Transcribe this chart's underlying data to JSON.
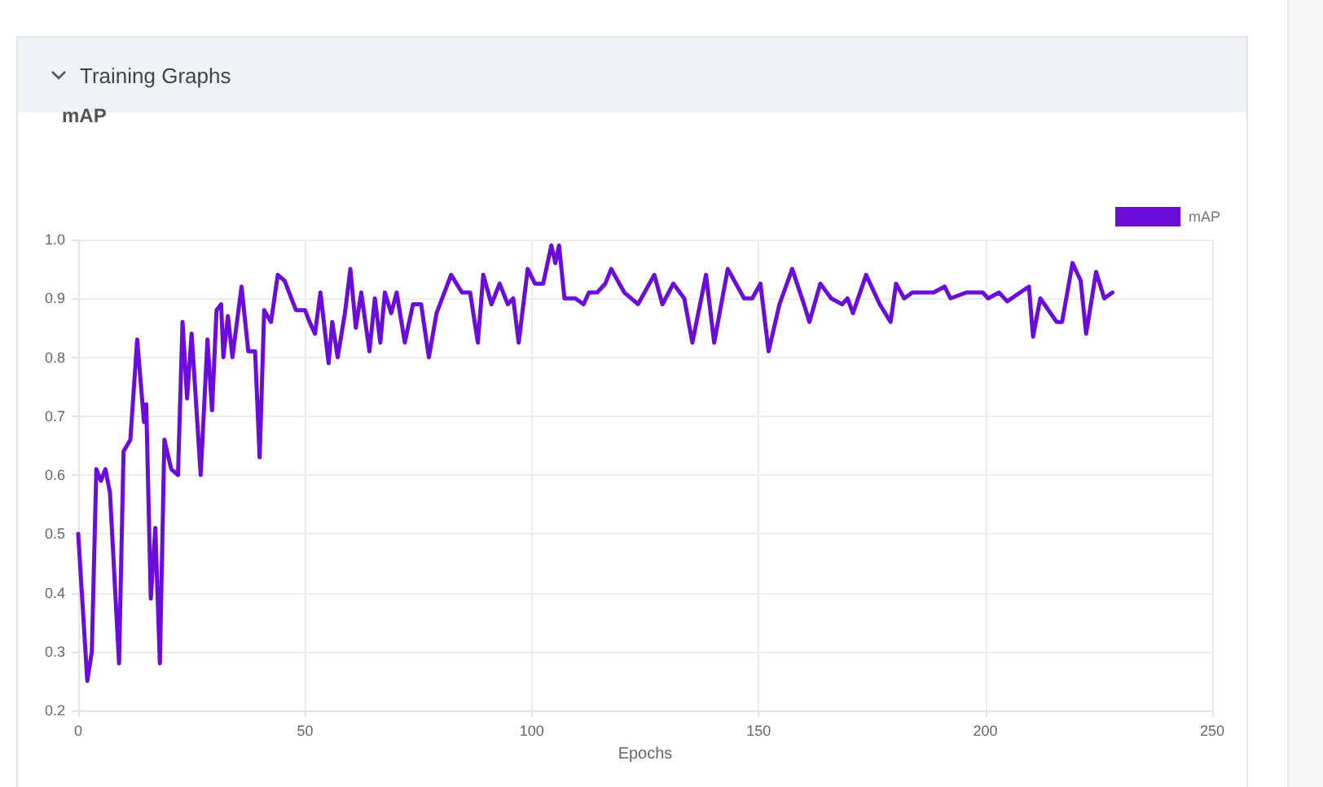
{
  "chart_data": {
    "type": "line",
    "title": "Training Graphs",
    "subtitle": "mAP",
    "xlabel": "Epochs",
    "x": [
      0,
      2,
      3,
      4,
      5,
      6,
      7,
      9,
      10,
      11.5,
      13,
      14.5,
      15,
      16,
      17,
      18,
      19,
      20.5,
      22,
      23,
      24,
      25,
      27,
      28.5,
      29.5,
      30.5,
      31.5,
      32,
      33,
      34,
      36,
      37.5,
      39,
      40,
      41,
      42.5,
      44,
      45.5,
      48,
      50,
      51,
      52.2,
      53.4,
      55.2,
      56,
      57.2,
      58.8,
      60,
      61.2,
      62.4,
      64.2,
      65.4,
      66.6,
      67.6,
      69,
      70.2,
      72,
      73.8,
      75.6,
      77.3,
      79,
      82.2,
      84.6,
      86.4,
      88.1,
      89.3,
      91.1,
      92.9,
      94.7,
      95.9,
      97.1,
      99.1,
      100.7,
      102.5,
      104.3,
      105.2,
      106,
      107.2,
      109.6,
      111.4,
      112.6,
      114.4,
      116.2,
      117.5,
      119.3,
      120.4,
      123.4,
      127,
      128.8,
      131.2,
      133.6,
      135.4,
      138.4,
      140.2,
      143.2,
      146.8,
      148.6,
      150.4,
      152.2,
      154.6,
      157.4,
      160,
      161.2,
      163.6,
      166,
      168.4,
      169.6,
      170.8,
      173.7,
      176.7,
      179.1,
      180.3,
      182.1,
      183.9,
      187.5,
      188.6,
      191,
      192.3,
      195.8,
      199.4,
      200.6,
      203,
      204.8,
      209.6,
      210.5,
      212.1,
      215.7,
      216.9,
      219.2,
      221,
      222.2,
      224.4,
      226.2,
      228
    ],
    "series": [
      {
        "name": "mAP",
        "color": "#6a0ddc",
        "values": [
          0.5,
          0.25,
          0.3,
          0.61,
          0.59,
          0.61,
          0.57,
          0.28,
          0.64,
          0.66,
          0.83,
          0.69,
          0.72,
          0.39,
          0.51,
          0.28,
          0.66,
          0.61,
          0.6,
          0.86,
          0.73,
          0.84,
          0.6,
          0.83,
          0.71,
          0.88,
          0.89,
          0.8,
          0.87,
          0.8,
          0.92,
          0.81,
          0.81,
          0.63,
          0.88,
          0.86,
          0.94,
          0.93,
          0.88,
          0.88,
          0.86,
          0.84,
          0.91,
          0.79,
          0.86,
          0.8,
          0.875,
          0.95,
          0.85,
          0.91,
          0.81,
          0.9,
          0.825,
          0.91,
          0.875,
          0.91,
          0.825,
          0.89,
          0.89,
          0.8,
          0.875,
          0.94,
          0.91,
          0.91,
          0.825,
          0.94,
          0.89,
          0.925,
          0.89,
          0.9,
          0.825,
          0.95,
          0.925,
          0.925,
          0.99,
          0.96,
          0.99,
          0.9,
          0.9,
          0.89,
          0.91,
          0.91,
          0.925,
          0.95,
          0.925,
          0.91,
          0.89,
          0.94,
          0.89,
          0.925,
          0.9,
          0.825,
          0.94,
          0.825,
          0.95,
          0.9,
          0.9,
          0.925,
          0.81,
          0.89,
          0.95,
          0.89,
          0.86,
          0.925,
          0.9,
          0.89,
          0.9,
          0.875,
          0.94,
          0.89,
          0.86,
          0.925,
          0.9,
          0.91,
          0.91,
          0.91,
          0.92,
          0.9,
          0.91,
          0.91,
          0.9,
          0.91,
          0.895,
          0.92,
          0.835,
          0.9,
          0.86,
          0.86,
          0.96,
          0.93,
          0.84,
          0.945,
          0.9,
          0.91
        ]
      }
    ],
    "xlim": [
      0,
      250
    ],
    "xticks": [
      0,
      50,
      100,
      150,
      200,
      250
    ],
    "ylim": [
      0.2,
      1
    ],
    "yticks": [
      0.2,
      0.3,
      0.4,
      0.5,
      0.6,
      0.7,
      0.8,
      0.9,
      {
        "value": 1,
        "label": "1.0"
      }
    ],
    "grid": true,
    "legend": "top right",
    "marker": "none",
    "line_style": "solid"
  }
}
